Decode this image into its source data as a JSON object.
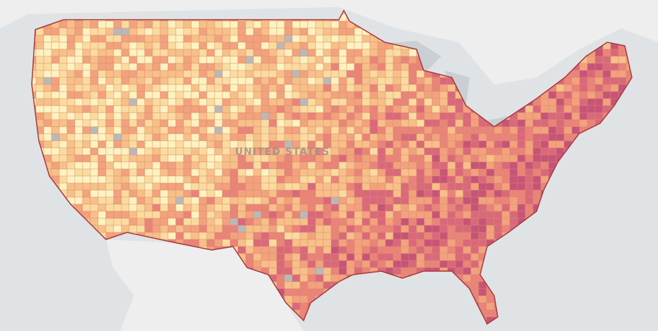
{
  "map": {
    "label": "UNITED STATES"
  }
}
